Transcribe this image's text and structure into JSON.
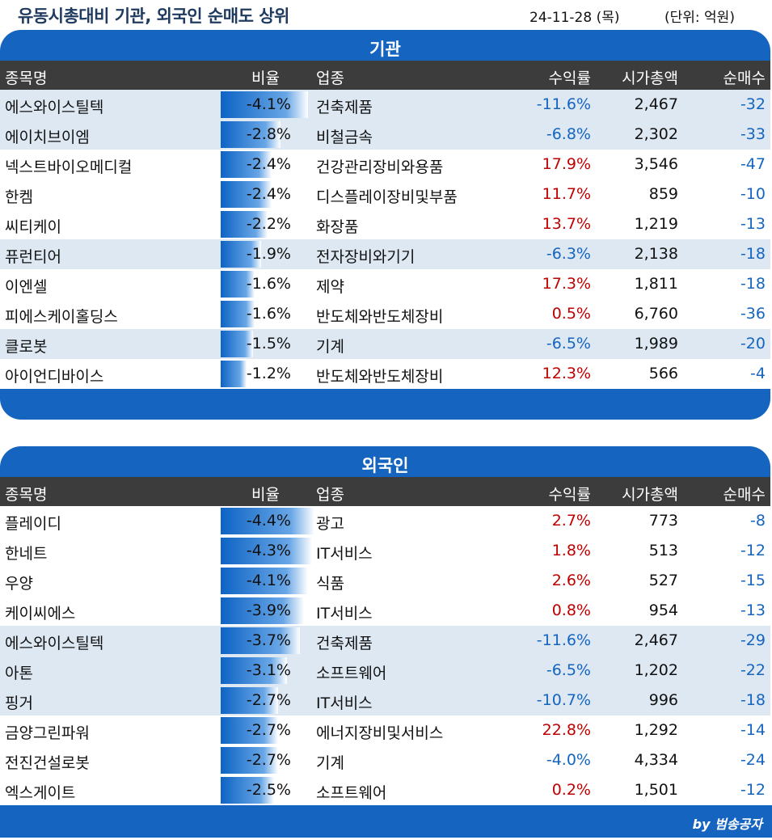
{
  "header": {
    "title": "유동시총대비 기관, 외국인 순매도 상위",
    "date": "24-11-28 (목)",
    "unit": "(단위: 억원)"
  },
  "columns": {
    "name": "종목명",
    "ratio": "비율",
    "industry": "업종",
    "return": "수익률",
    "market_cap": "시가총액",
    "net_sell": "순매수"
  },
  "institution": {
    "title": "기관",
    "rows": [
      {
        "name": "에스와이스틸텍",
        "ratio": "-4.1%",
        "ratio_value": 4.1,
        "industry": "건축제품",
        "return": "-11.6%",
        "return_sign": "neg",
        "market_cap": "2,467",
        "net": "-32",
        "highlight": true
      },
      {
        "name": "에이치브이엠",
        "ratio": "-2.8%",
        "ratio_value": 2.8,
        "industry": "비철금속",
        "return": "-6.8%",
        "return_sign": "neg",
        "market_cap": "2,302",
        "net": "-33",
        "highlight": true
      },
      {
        "name": "넥스트바이오메디컬",
        "ratio": "-2.4%",
        "ratio_value": 2.4,
        "industry": "건강관리장비와용품",
        "return": "17.9%",
        "return_sign": "pos",
        "market_cap": "3,546",
        "net": "-47",
        "highlight": false
      },
      {
        "name": "한켐",
        "ratio": "-2.4%",
        "ratio_value": 2.4,
        "industry": "디스플레이장비및부품",
        "return": "11.7%",
        "return_sign": "pos",
        "market_cap": "859",
        "net": "-10",
        "highlight": false
      },
      {
        "name": "씨티케이",
        "ratio": "-2.2%",
        "ratio_value": 2.2,
        "industry": "화장품",
        "return": "13.7%",
        "return_sign": "pos",
        "market_cap": "1,219",
        "net": "-13",
        "highlight": false
      },
      {
        "name": "퓨런티어",
        "ratio": "-1.9%",
        "ratio_value": 1.9,
        "industry": "전자장비와기기",
        "return": "-6.3%",
        "return_sign": "neg",
        "market_cap": "2,138",
        "net": "-18",
        "highlight": true
      },
      {
        "name": "이엔셀",
        "ratio": "-1.6%",
        "ratio_value": 1.6,
        "industry": "제약",
        "return": "17.3%",
        "return_sign": "pos",
        "market_cap": "1,811",
        "net": "-18",
        "highlight": false
      },
      {
        "name": "피에스케이홀딩스",
        "ratio": "-1.6%",
        "ratio_value": 1.6,
        "industry": "반도체와반도체장비",
        "return": "0.5%",
        "return_sign": "pos",
        "market_cap": "6,760",
        "net": "-36",
        "highlight": false
      },
      {
        "name": "클로봇",
        "ratio": "-1.5%",
        "ratio_value": 1.5,
        "industry": "기계",
        "return": "-6.5%",
        "return_sign": "neg",
        "market_cap": "1,989",
        "net": "-20",
        "highlight": true
      },
      {
        "name": "아이언디바이스",
        "ratio": "-1.2%",
        "ratio_value": 1.2,
        "industry": "반도체와반도체장비",
        "return": "12.3%",
        "return_sign": "pos",
        "market_cap": "566",
        "net": "-4",
        "highlight": false
      }
    ]
  },
  "foreign": {
    "title": "외국인",
    "rows": [
      {
        "name": "플레이디",
        "ratio": "-4.4%",
        "ratio_value": 4.4,
        "industry": "광고",
        "return": "2.7%",
        "return_sign": "pos",
        "market_cap": "773",
        "net": "-8",
        "highlight": false
      },
      {
        "name": "한네트",
        "ratio": "-4.3%",
        "ratio_value": 4.3,
        "industry": "IT서비스",
        "return": "1.8%",
        "return_sign": "pos",
        "market_cap": "513",
        "net": "-12",
        "highlight": false
      },
      {
        "name": "우양",
        "ratio": "-4.1%",
        "ratio_value": 4.1,
        "industry": "식품",
        "return": "2.6%",
        "return_sign": "pos",
        "market_cap": "527",
        "net": "-15",
        "highlight": false
      },
      {
        "name": "케이씨에스",
        "ratio": "-3.9%",
        "ratio_value": 3.9,
        "industry": "IT서비스",
        "return": "0.8%",
        "return_sign": "pos",
        "market_cap": "954",
        "net": "-13",
        "highlight": false
      },
      {
        "name": "에스와이스틸텍",
        "ratio": "-3.7%",
        "ratio_value": 3.7,
        "industry": "건축제품",
        "return": "-11.6%",
        "return_sign": "neg",
        "market_cap": "2,467",
        "net": "-29",
        "highlight": true
      },
      {
        "name": "아톤",
        "ratio": "-3.1%",
        "ratio_value": 3.1,
        "industry": "소프트웨어",
        "return": "-6.5%",
        "return_sign": "neg",
        "market_cap": "1,202",
        "net": "-22",
        "highlight": true
      },
      {
        "name": "핑거",
        "ratio": "-2.7%",
        "ratio_value": 2.7,
        "industry": "IT서비스",
        "return": "-10.7%",
        "return_sign": "neg",
        "market_cap": "996",
        "net": "-18",
        "highlight": true
      },
      {
        "name": "금양그린파워",
        "ratio": "-2.7%",
        "ratio_value": 2.7,
        "industry": "에너지장비및서비스",
        "return": "22.8%",
        "return_sign": "pos",
        "market_cap": "1,292",
        "net": "-14",
        "highlight": false
      },
      {
        "name": "전진건설로봇",
        "ratio": "-2.7%",
        "ratio_value": 2.7,
        "industry": "기계",
        "return": "-4.0%",
        "return_sign": "neg",
        "market_cap": "4,334",
        "net": "-24",
        "highlight": false
      },
      {
        "name": "엑스게이트",
        "ratio": "-2.5%",
        "ratio_value": 2.5,
        "industry": "소프트웨어",
        "return": "0.2%",
        "return_sign": "pos",
        "market_cap": "1,501",
        "net": "-12",
        "highlight": false
      }
    ]
  },
  "footer": {
    "credit": "by 범송공자"
  },
  "colors": {
    "accent": "#1565c0",
    "header_bg": "#3c3c3c",
    "highlight_row": "#dde8f3",
    "positive": "#c00000",
    "negative": "#1565c0"
  }
}
